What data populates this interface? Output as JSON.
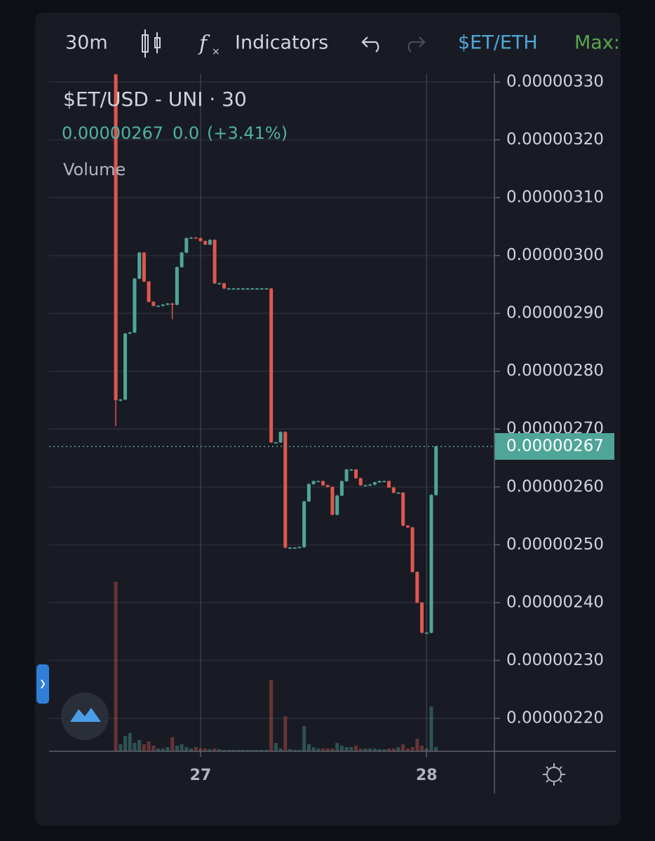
{
  "toolbar": {
    "interval": "30m",
    "indicators": "Indicators",
    "symbol": "$ET/ETH",
    "max": "Max:"
  },
  "chart_data": {
    "type": "candlestick",
    "title": "$ET/USD - UNI · 30",
    "legend_price": "0.00000267",
    "legend_change": "0.0",
    "legend_percent": "(+3.41%)",
    "volume_label": "Volume",
    "up_color": "#4fa597",
    "down_color": "#e0574f",
    "last_price": {
      "value": 2.67e-06,
      "label": "0.00000267"
    },
    "xlim": [
      26.33,
      28.3
    ],
    "xticks": [
      27,
      28
    ],
    "ylim": [
      2.143e-06,
      3.3145e-06
    ],
    "yticks": [
      {
        "value": 2.2e-06,
        "label": "0.00000220"
      },
      {
        "value": 2.3e-06,
        "label": "0.00000230"
      },
      {
        "value": 2.4e-06,
        "label": "0.00000240"
      },
      {
        "value": 2.5e-06,
        "label": "0.00000250"
      },
      {
        "value": 2.6e-06,
        "label": "0.00000260"
      },
      {
        "value": 2.7e-06,
        "label": "0.00000270"
      },
      {
        "value": 2.8e-06,
        "label": "0.00000280"
      },
      {
        "value": 2.9e-06,
        "label": "0.00000290"
      },
      {
        "value": 3e-06,
        "label": "0.00000300"
      },
      {
        "value": 3.1e-06,
        "label": "0.00000310"
      },
      {
        "value": 3.2e-06,
        "label": "0.00000320"
      },
      {
        "value": 3.3e-06,
        "label": "0.00000330"
      }
    ],
    "grid": true,
    "x": [
      26.625,
      26.6458,
      26.6667,
      26.6875,
      26.7083,
      26.7292,
      26.75,
      26.7708,
      26.7917,
      26.8125,
      26.8333,
      26.8542,
      26.875,
      26.8958,
      26.9167,
      26.9375,
      26.9583,
      26.9792,
      27,
      27.0208,
      27.0417,
      27.0625,
      27.0833,
      27.1042,
      27.125,
      27.1458,
      27.1667,
      27.1875,
      27.2083,
      27.2292,
      27.25,
      27.2708,
      27.2917,
      27.3125,
      27.3333,
      27.3542,
      27.375,
      27.3958,
      27.4167,
      27.4375,
      27.4583,
      27.4792,
      27.5,
      27.5208,
      27.5417,
      27.5625,
      27.5833,
      27.6042,
      27.625,
      27.6458,
      27.6667,
      27.6875,
      27.7083,
      27.7292,
      27.75,
      27.7708,
      27.7917,
      27.8125,
      27.8333,
      27.8542,
      27.875,
      27.8958,
      27.9167,
      27.9375,
      27.9583,
      27.9792,
      28,
      28.0208,
      28.0417
    ],
    "open": [
      3.313e-06,
      2.75e-06,
      2.751e-06,
      2.865e-06,
      2.867e-06,
      2.96e-06,
      3.005e-06,
      2.955e-06,
      2.92e-06,
      2.913e-06,
      2.913e-06,
      2.915e-06,
      2.917e-06,
      2.915e-06,
      2.98e-06,
      3.005e-06,
      3.03e-06,
      3.031e-06,
      3.03e-06,
      3.025e-06,
      3.019e-06,
      3.027e-06,
      2.952e-06,
      2.952e-06,
      2.943e-06,
      2.943e-06,
      2.943e-06,
      2.943e-06,
      2.943e-06,
      2.943e-06,
      2.943e-06,
      2.943e-06,
      2.943e-06,
      2.943e-06,
      2.677e-06,
      2.677e-06,
      2.695e-06,
      2.495e-06,
      2.495e-06,
      2.495e-06,
      2.496e-06,
      2.575e-06,
      2.605e-06,
      2.61e-06,
      2.61e-06,
      2.603e-06,
      2.6e-06,
      2.552e-06,
      2.585e-06,
      2.61e-06,
      2.63e-06,
      2.63e-06,
      2.615e-06,
      2.603e-06,
      2.603e-06,
      2.604e-06,
      2.608e-06,
      2.61e-06,
      2.61e-06,
      2.599e-06,
      2.59e-06,
      2.59e-06,
      2.533e-06,
      2.53e-06,
      2.453e-06,
      2.4e-06,
      2.348e-06,
      2.348e-06,
      2.586e-06
    ],
    "high": [
      3.314e-06,
      2.752e-06,
      2.866e-06,
      2.868e-06,
      2.961e-06,
      3.006e-06,
      3.006e-06,
      2.956e-06,
      2.921e-06,
      2.914e-06,
      2.916e-06,
      2.918e-06,
      2.918e-06,
      2.981e-06,
      3.006e-06,
      3.031e-06,
      3.032e-06,
      3.032e-06,
      3.031e-06,
      3.026e-06,
      3.028e-06,
      3.028e-06,
      2.953e-06,
      2.953e-06,
      2.944e-06,
      2.944e-06,
      2.944e-06,
      2.944e-06,
      2.944e-06,
      2.944e-06,
      2.944e-06,
      2.944e-06,
      2.944e-06,
      2.944e-06,
      2.678e-06,
      2.696e-06,
      2.696e-06,
      2.496e-06,
      2.496e-06,
      2.497e-06,
      2.576e-06,
      2.606e-06,
      2.611e-06,
      2.611e-06,
      2.611e-06,
      2.604e-06,
      2.601e-06,
      2.586e-06,
      2.611e-06,
      2.631e-06,
      2.631e-06,
      2.631e-06,
      2.616e-06,
      2.604e-06,
      2.605e-06,
      2.609e-06,
      2.611e-06,
      2.611e-06,
      2.611e-06,
      2.6e-06,
      2.591e-06,
      2.591e-06,
      2.534e-06,
      2.531e-06,
      2.454e-06,
      2.401e-06,
      2.349e-06,
      2.587e-06,
      2.671e-06
    ],
    "low": [
      2.705e-06,
      2.748e-06,
      2.75e-06,
      2.864e-06,
      2.866e-06,
      2.959e-06,
      2.954e-06,
      2.919e-06,
      2.912e-06,
      2.912e-06,
      2.912e-06,
      2.914e-06,
      2.89e-06,
      2.914e-06,
      2.979e-06,
      3.004e-06,
      3.029e-06,
      3.029e-06,
      3.024e-06,
      3.018e-06,
      3.018e-06,
      2.951e-06,
      2.951e-06,
      2.942e-06,
      2.942e-06,
      2.942e-06,
      2.942e-06,
      2.942e-06,
      2.942e-06,
      2.942e-06,
      2.942e-06,
      2.942e-06,
      2.942e-06,
      2.676e-06,
      2.676e-06,
      2.676e-06,
      2.494e-06,
      2.494e-06,
      2.494e-06,
      2.494e-06,
      2.495e-06,
      2.574e-06,
      2.604e-06,
      2.609e-06,
      2.602e-06,
      2.599e-06,
      2.551e-06,
      2.551e-06,
      2.584e-06,
      2.609e-06,
      2.629e-06,
      2.614e-06,
      2.602e-06,
      2.602e-06,
      2.602e-06,
      2.603e-06,
      2.607e-06,
      2.609e-06,
      2.598e-06,
      2.589e-06,
      2.589e-06,
      2.532e-06,
      2.529e-06,
      2.452e-06,
      2.399e-06,
      2.347e-06,
      2.347e-06,
      2.347e-06,
      2.585e-06
    ],
    "close": [
      2.75e-06,
      2.751e-06,
      2.865e-06,
      2.867e-06,
      2.96e-06,
      3.005e-06,
      2.955e-06,
      2.92e-06,
      2.913e-06,
      2.913e-06,
      2.915e-06,
      2.917e-06,
      2.915e-06,
      2.98e-06,
      3.005e-06,
      3.03e-06,
      3.031e-06,
      3.03e-06,
      3.025e-06,
      3.019e-06,
      3.027e-06,
      2.952e-06,
      2.952e-06,
      2.943e-06,
      2.943e-06,
      2.943e-06,
      2.943e-06,
      2.943e-06,
      2.943e-06,
      2.943e-06,
      2.943e-06,
      2.943e-06,
      2.943e-06,
      2.677e-06,
      2.677e-06,
      2.695e-06,
      2.495e-06,
      2.495e-06,
      2.495e-06,
      2.496e-06,
      2.575e-06,
      2.605e-06,
      2.61e-06,
      2.61e-06,
      2.603e-06,
      2.6e-06,
      2.552e-06,
      2.585e-06,
      2.61e-06,
      2.63e-06,
      2.63e-06,
      2.615e-06,
      2.603e-06,
      2.603e-06,
      2.604e-06,
      2.608e-06,
      2.61e-06,
      2.61e-06,
      2.599e-06,
      2.59e-06,
      2.59e-06,
      2.533e-06,
      2.53e-06,
      2.453e-06,
      2.4e-06,
      2.348e-06,
      2.348e-06,
      2.586e-06,
      2.67e-06
    ],
    "volume": [
      242,
      10,
      22,
      26,
      12,
      16,
      10,
      14,
      8,
      4,
      4,
      6,
      20,
      8,
      10,
      6,
      4,
      6,
      4,
      4,
      3,
      4,
      3,
      2,
      2,
      2,
      2,
      2,
      2,
      2,
      2,
      2,
      2,
      102,
      12,
      4,
      50,
      3,
      2,
      2,
      36,
      10,
      6,
      4,
      4,
      4,
      4,
      12,
      8,
      6,
      6,
      8,
      4,
      4,
      4,
      4,
      3,
      3,
      4,
      4,
      6,
      10,
      4,
      6,
      18,
      8,
      4,
      64,
      6
    ]
  }
}
